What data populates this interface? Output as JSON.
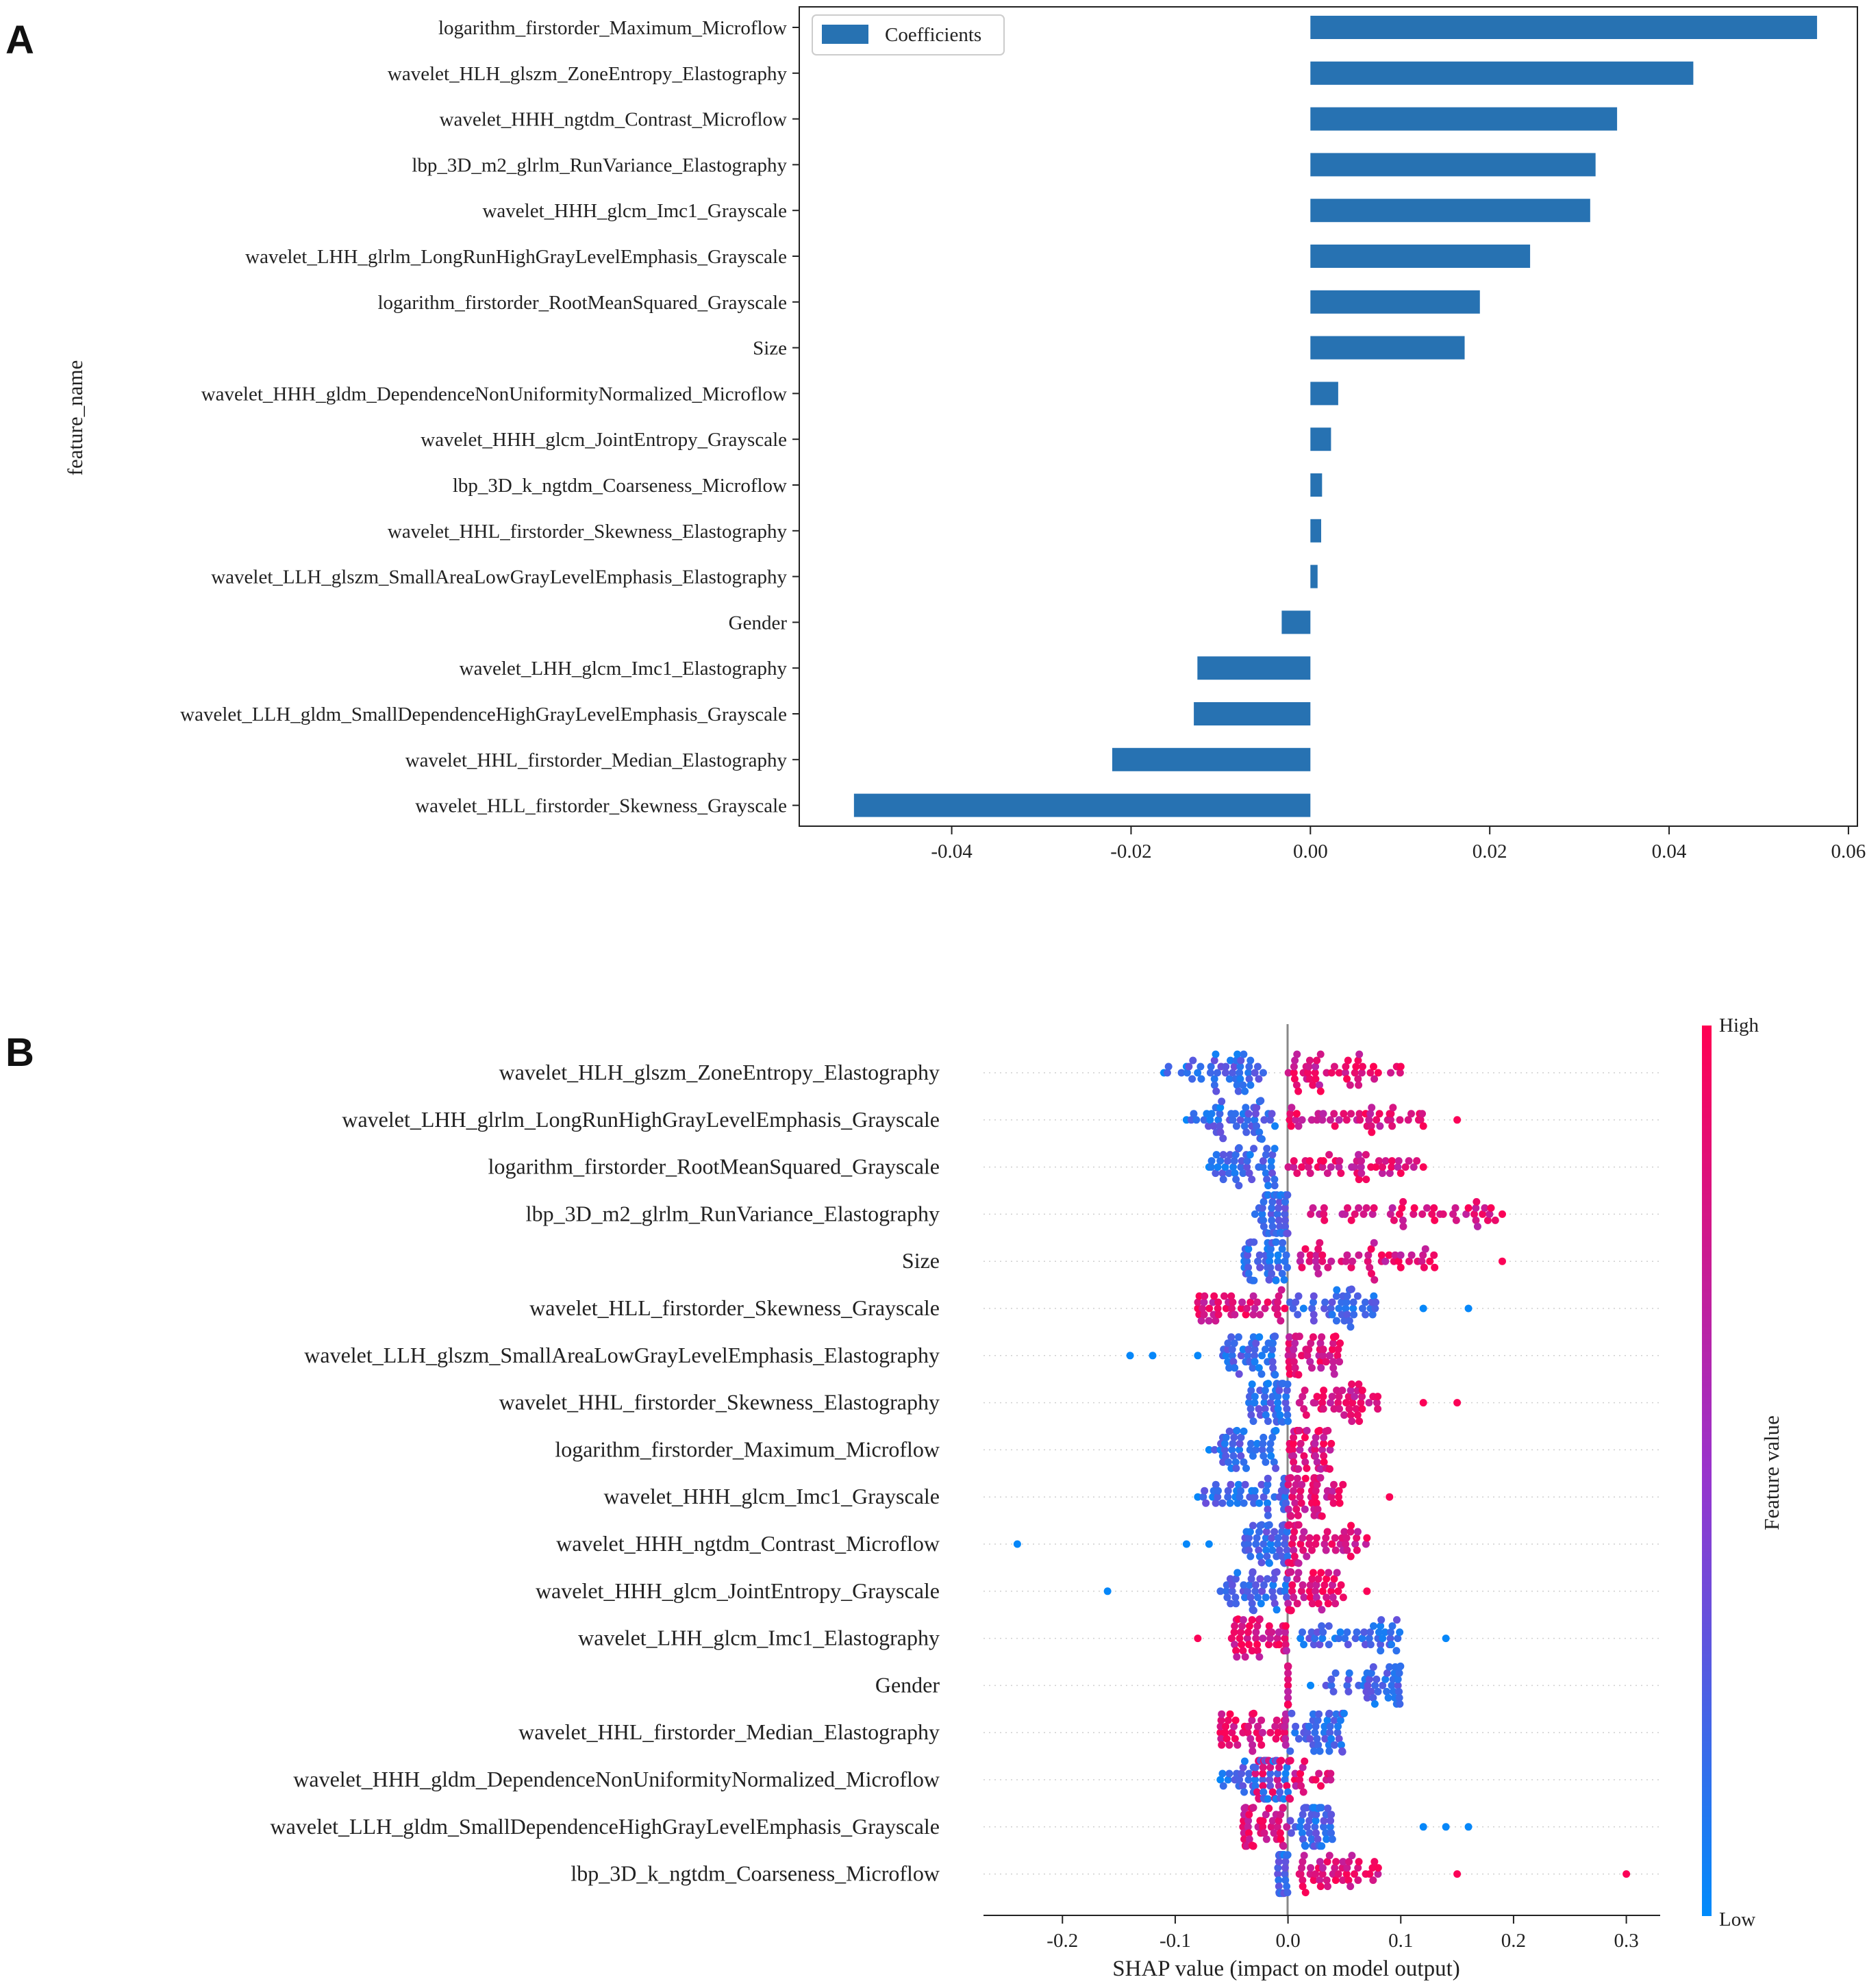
{
  "panels": {
    "a_label": "A",
    "b_label": "B"
  },
  "chart_data": [
    {
      "type": "bar",
      "orientation": "horizontal",
      "panel": "A",
      "ylabel": "feature_name",
      "xlabel": "",
      "legend": {
        "label": "Coefficients",
        "placement": "top-left"
      },
      "bar_color": "#2772b2",
      "xlim": [
        -0.057,
        0.061
      ],
      "xticks": [
        -0.04,
        -0.02,
        0.0,
        0.02,
        0.04,
        0.06
      ],
      "xtick_labels": [
        "-0.04",
        "-0.02",
        "0.00",
        "0.02",
        "0.04",
        "0.06"
      ],
      "categories": [
        "logarithm_firstorder_Maximum_Microflow",
        "wavelet_HLH_glszm_ZoneEntropy_Elastography",
        "wavelet_HHH_ngtdm_Contrast_Microflow",
        "lbp_3D_m2_glrlm_RunVariance_Elastography",
        "wavelet_HHH_glcm_Imc1_Grayscale",
        "wavelet_LHH_glrlm_LongRunHighGrayLevelEmphasis_Grayscale",
        "logarithm_firstorder_RootMeanSquared_Grayscale",
        "Size",
        "wavelet_HHH_gldm_DependenceNonUniformityNormalized_Microflow",
        "wavelet_HHH_glcm_JointEntropy_Grayscale",
        "lbp_3D_k_ngtdm_Coarseness_Microflow",
        "wavelet_HHL_firstorder_Skewness_Elastography",
        "wavelet_LLH_glszm_SmallAreaLowGrayLevelEmphasis_Elastography",
        "Gender",
        "wavelet_LHH_glcm_Imc1_Elastography",
        "wavelet_LLH_gldm_SmallDependenceHighGrayLevelEmphasis_Grayscale",
        "wavelet_HHL_firstorder_Median_Elastography",
        "wavelet_HLL_firstorder_Skewness_Grayscale"
      ],
      "values": [
        0.0565,
        0.0427,
        0.0342,
        0.0318,
        0.0312,
        0.0245,
        0.0189,
        0.0172,
        0.0031,
        0.0023,
        0.0013,
        0.0012,
        0.0008,
        -0.0032,
        -0.0126,
        -0.013,
        -0.0221,
        -0.0509
      ]
    },
    {
      "type": "scatter",
      "subtype": "shap-beeswarm",
      "panel": "B",
      "xlabel": "SHAP value (impact on model output)",
      "xlim": [
        -0.27,
        0.33
      ],
      "xticks": [
        -0.2,
        -0.1,
        0.0,
        0.1,
        0.2,
        0.3
      ],
      "xtick_labels": [
        "-0.2",
        "-0.1",
        "0.0",
        "0.1",
        "0.2",
        "0.3"
      ],
      "colorbar": {
        "label": "Feature value",
        "high_label": "High",
        "low_label": "Low",
        "high_color": "#ff0052",
        "low_color": "#008bfb"
      },
      "series": [
        {
          "name": "wavelet_HLH_glszm_ZoneEntropy_Elastography",
          "low_min": -0.11,
          "low_max": -0.02,
          "high_min": 0.0,
          "high_max": 0.1,
          "low_out": [
            -0.11,
            -0.09
          ],
          "high_out": [
            0.08,
            0.1
          ]
        },
        {
          "name": "wavelet_LHH_glrlm_LongRunHighGrayLevelEmphasis_Grayscale",
          "low_min": -0.09,
          "low_max": -0.01,
          "high_min": 0.0,
          "high_max": 0.12,
          "low_out": [
            -0.09,
            -0.06
          ],
          "high_out": [
            0.12,
            0.15
          ]
        },
        {
          "name": "logarithm_firstorder_RootMeanSquared_Grayscale",
          "low_min": -0.07,
          "low_max": -0.01,
          "high_min": 0.0,
          "high_max": 0.12,
          "low_out": [
            -0.07
          ],
          "high_out": [
            0.1,
            0.12
          ]
        },
        {
          "name": "lbp_3D_m2_glrlm_RunVariance_Elastography",
          "low_min": -0.03,
          "low_max": 0.0,
          "high_min": 0.02,
          "high_max": 0.19,
          "low_out": [],
          "high_out": [
            0.13,
            0.16,
            0.18,
            0.19
          ]
        },
        {
          "name": "Size",
          "low_min": -0.04,
          "low_max": 0.0,
          "high_min": 0.01,
          "high_max": 0.13,
          "low_out": [],
          "high_out": [
            0.1,
            0.13,
            0.19
          ]
        },
        {
          "name": "wavelet_HLL_firstorder_Skewness_Grayscale",
          "low_min": 0.0,
          "low_max": 0.08,
          "high_min": -0.08,
          "high_max": 0.0,
          "low_out": [
            0.12,
            0.16
          ],
          "high_out": [
            -0.08
          ]
        },
        {
          "name": "wavelet_LLH_glszm_SmallAreaLowGrayLevelEmphasis_Elastography",
          "low_min": -0.06,
          "low_max": -0.01,
          "high_min": 0.0,
          "high_max": 0.05,
          "low_out": [
            -0.14,
            -0.12,
            -0.08
          ],
          "high_out": []
        },
        {
          "name": "wavelet_HHL_firstorder_Skewness_Elastography",
          "low_min": -0.04,
          "low_max": 0.0,
          "high_min": 0.01,
          "high_max": 0.08,
          "low_out": [],
          "high_out": [
            0.12,
            0.15
          ]
        },
        {
          "name": "logarithm_firstorder_Maximum_Microflow",
          "low_min": -0.07,
          "low_max": -0.01,
          "high_min": 0.0,
          "high_max": 0.04,
          "low_out": [
            -0.07
          ],
          "high_out": []
        },
        {
          "name": "wavelet_HHH_glcm_Imc1_Grayscale",
          "low_min": -0.08,
          "low_max": 0.0,
          "high_min": 0.0,
          "high_max": 0.05,
          "low_out": [
            -0.08
          ],
          "high_out": [
            0.09
          ]
        },
        {
          "name": "wavelet_HHH_ngtdm_Contrast_Microflow",
          "low_min": -0.04,
          "low_max": 0.0,
          "high_min": 0.0,
          "high_max": 0.07,
          "low_out": [
            -0.24,
            -0.09,
            -0.07
          ],
          "high_out": [
            0.07
          ]
        },
        {
          "name": "wavelet_HHH_glcm_JointEntropy_Grayscale",
          "low_min": -0.06,
          "low_max": 0.0,
          "high_min": 0.0,
          "high_max": 0.05,
          "low_out": [
            -0.16
          ],
          "high_out": [
            0.07
          ]
        },
        {
          "name": "wavelet_LHH_glcm_Imc1_Elastography",
          "low_min": 0.0,
          "low_max": 0.1,
          "high_min": -0.05,
          "high_max": 0.0,
          "low_out": [
            0.14
          ],
          "high_out": [
            -0.08,
            -0.05
          ]
        },
        {
          "name": "Gender",
          "low_min": 0.03,
          "low_max": 0.1,
          "high_min": 0.0,
          "high_max": 0.0,
          "low_out": [
            0.02
          ],
          "high_out": []
        },
        {
          "name": "wavelet_HHL_firstorder_Median_Elastography",
          "low_min": 0.0,
          "low_max": 0.05,
          "high_min": -0.06,
          "high_max": 0.0,
          "low_out": [],
          "high_out": [
            -0.06
          ]
        },
        {
          "name": "wavelet_HHH_gldm_DependenceNonUniformityNormalized_Microflow",
          "low_min": -0.06,
          "low_max": 0.0,
          "high_min": -0.03,
          "high_max": 0.04,
          "low_out": [
            -0.06
          ],
          "high_out": []
        },
        {
          "name": "wavelet_LLH_gldm_SmallDependenceHighGrayLevelEmphasis_Grayscale",
          "low_min": 0.0,
          "low_max": 0.04,
          "high_min": -0.04,
          "high_max": 0.0,
          "low_out": [
            0.12,
            0.14,
            0.16
          ],
          "high_out": []
        },
        {
          "name": "lbp_3D_k_ngtdm_Coarseness_Microflow",
          "low_min": -0.01,
          "low_max": 0.0,
          "high_min": 0.01,
          "high_max": 0.08,
          "low_out": [],
          "high_out": [
            0.08,
            0.15,
            0.3
          ]
        }
      ]
    }
  ]
}
